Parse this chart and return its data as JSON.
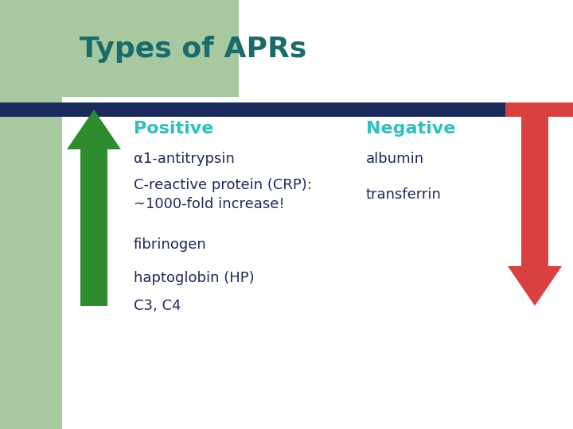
{
  "title": "Types of APRs",
  "title_color": "#1A6B6B",
  "title_fontsize": 26,
  "background_color": "#FFFFFF",
  "slide_bg_color": "#A8C8A0",
  "header_bar_color": "#1A2A5A",
  "positive_label": "Positive",
  "negative_label": "Negative",
  "label_color": "#30BFBF",
  "label_fontsize": 16,
  "positive_items": [
    "α1-antitrypsin",
    "C-reactive protein (CRP):\n~1000-fold increase!",
    "fibrinogen",
    "haptoglobin (HP)",
    "C3, C4"
  ],
  "negative_items": [
    "albumin",
    "transferrin"
  ],
  "items_color": "#1A2A5A",
  "items_fontsize": 13,
  "up_arrow_color": "#2E8B2E",
  "down_arrow_color": "#D94040",
  "green_bg_color": "#A8C8A0"
}
